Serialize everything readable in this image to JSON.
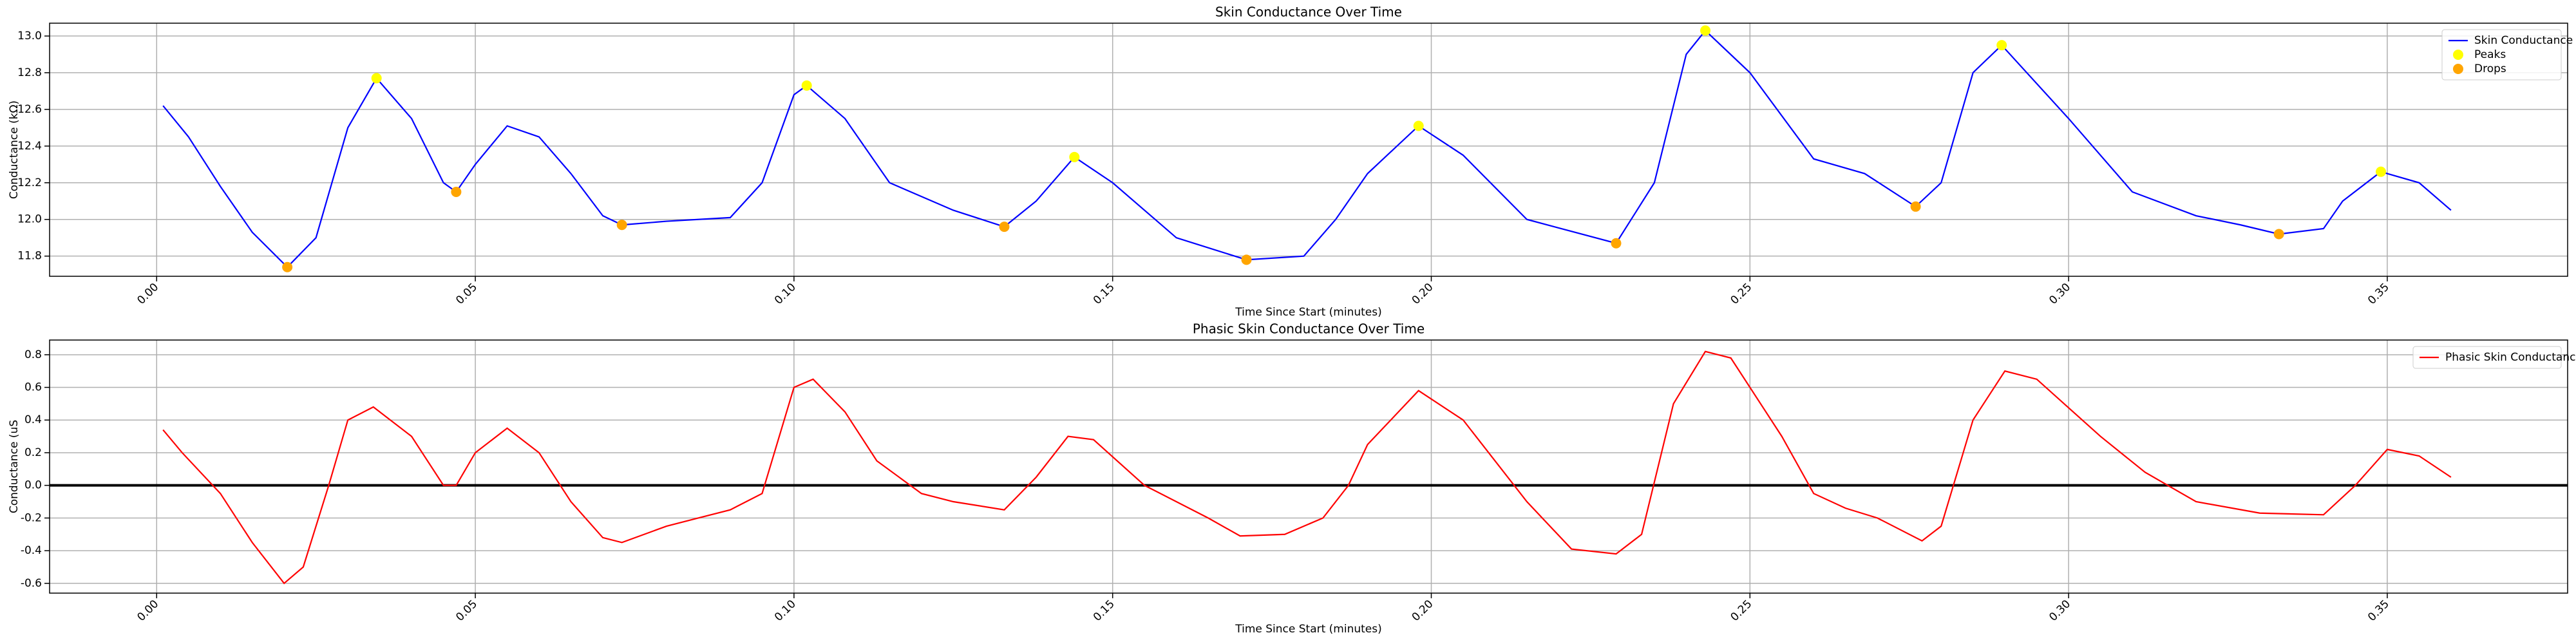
{
  "chart_data": [
    {
      "type": "line",
      "title": "Skin Conductance Over Time",
      "xlabel": "Time Since Start (minutes)",
      "ylabel": "Conductance (kΩ)",
      "xlim": [
        -0.0168,
        0.3783
      ],
      "ylim": [
        11.69,
        13.07
      ],
      "xticks": [
        {
          "value": 0,
          "label": "0.00"
        },
        {
          "value": 0.05,
          "label": "0.05"
        },
        {
          "value": 0.1,
          "label": "0.10"
        },
        {
          "value": 0.15,
          "label": "0.15"
        },
        {
          "value": 0.2,
          "label": "0.20"
        },
        {
          "value": 0.25,
          "label": "0.25"
        },
        {
          "value": 0.3,
          "label": "0.30"
        },
        {
          "value": 0.35,
          "label": "0.35"
        }
      ],
      "yticks": [
        11.8,
        {
          "value": 12,
          "label": "12.0"
        },
        12.2,
        12.4,
        12.6,
        12.8,
        {
          "value": 13,
          "label": "13.0"
        }
      ],
      "grid": true,
      "legend": "upper right",
      "series": [
        {
          "name": "Skin Conductance",
          "type": "line",
          "color": "#0000ff",
          "x": [
            0.001,
            0.005,
            0.01,
            0.015,
            0.0205,
            0.025,
            0.03,
            0.0345,
            0.04,
            0.045,
            0.047,
            0.05,
            0.055,
            0.06,
            0.065,
            0.07,
            0.073,
            0.08,
            0.09,
            0.095,
            0.1,
            0.102,
            0.108,
            0.115,
            0.125,
            0.133,
            0.138,
            0.144,
            0.15,
            0.16,
            0.171,
            0.18,
            0.185,
            0.19,
            0.198,
            0.205,
            0.215,
            0.229,
            0.235,
            0.24,
            0.243,
            0.25,
            0.26,
            0.268,
            0.276,
            0.28,
            0.285,
            0.2895,
            0.3,
            0.31,
            0.32,
            0.327,
            0.333,
            0.34,
            0.343,
            0.349,
            0.355,
            0.36
          ],
          "values": [
            12.62,
            12.45,
            12.18,
            11.93,
            11.74,
            11.9,
            12.5,
            12.77,
            12.55,
            12.2,
            12.15,
            12.3,
            12.51,
            12.45,
            12.25,
            12.02,
            11.97,
            11.99,
            12.01,
            12.2,
            12.68,
            12.73,
            12.55,
            12.2,
            12.05,
            11.96,
            12.1,
            12.34,
            12.2,
            11.9,
            11.78,
            11.8,
            12.0,
            12.25,
            12.51,
            12.35,
            12.0,
            11.87,
            12.2,
            12.9,
            13.03,
            12.8,
            12.33,
            12.25,
            12.07,
            12.2,
            12.8,
            12.95,
            12.55,
            12.15,
            12.02,
            11.97,
            11.92,
            11.95,
            12.1,
            12.26,
            12.2,
            12.05
          ]
        },
        {
          "name": "Peaks",
          "type": "scatter",
          "color": "#ffff00",
          "x": [
            0.0345,
            0.102,
            0.144,
            0.198,
            0.243,
            0.2895,
            0.349
          ],
          "values": [
            12.77,
            12.73,
            12.34,
            12.51,
            13.03,
            12.95,
            12.26
          ]
        },
        {
          "name": "Drops",
          "type": "scatter",
          "color": "#ffa500",
          "x": [
            0.0205,
            0.047,
            0.073,
            0.133,
            0.171,
            0.229,
            0.276,
            0.333
          ],
          "values": [
            11.74,
            12.15,
            11.97,
            11.96,
            11.78,
            11.87,
            12.07,
            11.92
          ]
        }
      ]
    },
    {
      "type": "line",
      "title": "Phasic Skin Conductance Over Time",
      "xlabel": "Time Since Start (minutes)",
      "ylabel": "Conductance (uS",
      "xlim": [
        -0.0168,
        0.3783
      ],
      "ylim": [
        -0.66,
        0.89
      ],
      "xticks": [
        {
          "value": 0,
          "label": "0.00"
        },
        {
          "value": 0.05,
          "label": "0.05"
        },
        {
          "value": 0.1,
          "label": "0.10"
        },
        {
          "value": 0.15,
          "label": "0.15"
        },
        {
          "value": 0.2,
          "label": "0.20"
        },
        {
          "value": 0.25,
          "label": "0.25"
        },
        {
          "value": 0.3,
          "label": "0.30"
        },
        {
          "value": 0.35,
          "label": "0.35"
        }
      ],
      "yticks": [
        -0.6,
        -0.4,
        -0.2,
        {
          "value": 0,
          "label": "0.0"
        },
        0.2,
        0.4,
        0.6,
        0.8
      ],
      "grid": true,
      "legend": "upper right",
      "hline": 0,
      "series": [
        {
          "name": "Phasic Skin Conductance",
          "type": "line",
          "color": "#ff0000",
          "x": [
            0.001,
            0.004,
            0.01,
            0.015,
            0.02,
            0.023,
            0.027,
            0.03,
            0.034,
            0.04,
            0.045,
            0.047,
            0.05,
            0.055,
            0.06,
            0.065,
            0.07,
            0.073,
            0.08,
            0.085,
            0.09,
            0.095,
            0.1,
            0.103,
            0.108,
            0.113,
            0.12,
            0.125,
            0.133,
            0.138,
            0.143,
            0.147,
            0.155,
            0.165,
            0.17,
            0.177,
            0.183,
            0.187,
            0.19,
            0.198,
            0.205,
            0.215,
            0.222,
            0.229,
            0.233,
            0.238,
            0.243,
            0.247,
            0.255,
            0.26,
            0.265,
            0.27,
            0.277,
            0.28,
            0.285,
            0.29,
            0.295,
            0.305,
            0.312,
            0.32,
            0.33,
            0.34,
            0.345,
            0.35,
            0.355,
            0.36
          ],
          "values": [
            0.34,
            0.2,
            -0.05,
            -0.35,
            -0.6,
            -0.5,
            0.0,
            0.4,
            0.48,
            0.3,
            0.0,
            0.0,
            0.2,
            0.35,
            0.2,
            -0.1,
            -0.32,
            -0.35,
            -0.25,
            -0.2,
            -0.15,
            -0.05,
            0.6,
            0.65,
            0.45,
            0.15,
            -0.05,
            -0.1,
            -0.15,
            0.05,
            0.3,
            0.28,
            0.0,
            -0.2,
            -0.31,
            -0.3,
            -0.2,
            0.0,
            0.25,
            0.58,
            0.4,
            -0.1,
            -0.39,
            -0.42,
            -0.3,
            0.5,
            0.82,
            0.78,
            0.3,
            -0.05,
            -0.14,
            -0.2,
            -0.34,
            -0.25,
            0.4,
            0.7,
            0.65,
            0.3,
            0.08,
            -0.1,
            -0.17,
            -0.18,
            0.0,
            0.22,
            0.18,
            0.05
          ]
        }
      ]
    }
  ]
}
